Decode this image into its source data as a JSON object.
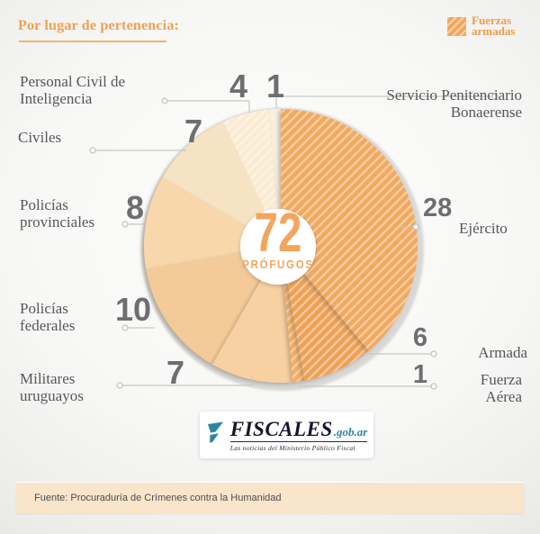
{
  "header": {
    "title": "Por lugar de pertenencia:"
  },
  "chart_data": {
    "type": "pie",
    "title": "Por lugar de pertenencia:",
    "total": 72,
    "center_label": "PRÓFUGOS",
    "direction": "clockwise",
    "start_angle": "12 o'clock",
    "legend": [
      {
        "label": "Fuerzas armadas",
        "style": "diagonal-hatch",
        "color": "#F1A85E"
      }
    ],
    "slices": [
      {
        "id": "ejercito",
        "label": "Ejército",
        "value": 28,
        "color": "#F1A85E",
        "hatched": true
      },
      {
        "id": "armada",
        "label": "Armada",
        "value": 6,
        "color": "#EEA156",
        "hatched": true
      },
      {
        "id": "fuerza-aerea",
        "label": "Fuerza Aérea",
        "value": 1,
        "color": "#F3AD66",
        "hatched": true
      },
      {
        "id": "militares-uruguayos",
        "label": "Militares uruguayos",
        "value": 7,
        "color": "#F8D1A2",
        "hatched": false
      },
      {
        "id": "policias-federales",
        "label": "Policías federales",
        "value": 10,
        "color": "#F4CB98",
        "hatched": false
      },
      {
        "id": "policias-provinciales",
        "label": "Policías provinciales",
        "value": 8,
        "color": "#F7D7AB",
        "hatched": false
      },
      {
        "id": "civiles",
        "label": "Civiles",
        "value": 7,
        "color": "#F6E3C3",
        "hatched": false
      },
      {
        "id": "personal-civil-inteligencia",
        "label": "Personal Civil de Inteligencia",
        "value": 4,
        "color": "#FAEBD2",
        "hatched": true
      },
      {
        "id": "servicio-penitenciario",
        "label": "Servicio Penitenciario Bonaerense",
        "value": 1,
        "color": "#F8F0E0",
        "hatched": false
      }
    ]
  },
  "callouts": {
    "personal_civil": {
      "label": "Personal Civil de\nInteligencia"
    },
    "servicio_penitenciario": {
      "label": "Servicio Penitenciario\nBonaerense"
    },
    "civiles": {
      "label": "Civiles"
    },
    "policias_provinciales": {
      "label": "Policías\nprovinciales"
    },
    "policias_federales": {
      "label": "Policías\nfederales"
    },
    "militares_uruguayos": {
      "label": "Militares\nuruguayos"
    },
    "ejercito": {
      "label": "Ejército"
    },
    "armada": {
      "label": "Armada"
    },
    "fuerza_aerea": {
      "label": "Fuerza\nAérea"
    }
  },
  "logo": {
    "brand": "FISCALES",
    "domain": ".gob.ar",
    "tagline": "Las noticias del Ministerio Público Fiscal"
  },
  "footer": {
    "source": "Fuente: Procuraduría de Crímenes contra la Humanidad"
  },
  "colors": {
    "accent_orange": "#F0A150",
    "number_gray": "#6E6E71",
    "label_gray": "#57575B",
    "logo_teal": "#2E86A5",
    "footer_bg": "#F9E5C9"
  }
}
